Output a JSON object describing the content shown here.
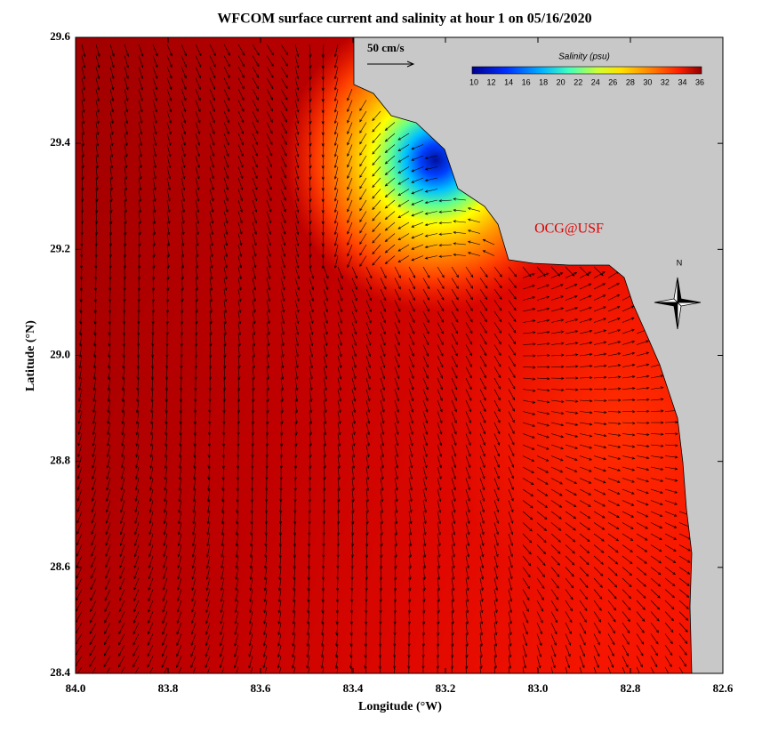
{
  "title": "WFCOM surface current and salinity at hour 1 on 05/16/2020",
  "x_axis": {
    "label": "Longitude (°W)",
    "ticks": [
      "84.0",
      "83.8",
      "83.6",
      "83.4",
      "83.2",
      "83.0",
      "82.8",
      "82.6"
    ]
  },
  "y_axis": {
    "label": "Latitude (°N)",
    "ticks": [
      "29.6",
      "29.4",
      "29.2",
      "29.0",
      "28.8",
      "28.6",
      "28.4"
    ]
  },
  "colorbar": {
    "title": "Salinity (psu)",
    "ticks": [
      "10",
      "12",
      "14",
      "16",
      "18",
      "20",
      "22",
      "24",
      "26",
      "28",
      "30",
      "32",
      "34",
      "36"
    ]
  },
  "scale_label": "50 cm/s",
  "credit": "OCG@USF",
  "compass": "N"
}
